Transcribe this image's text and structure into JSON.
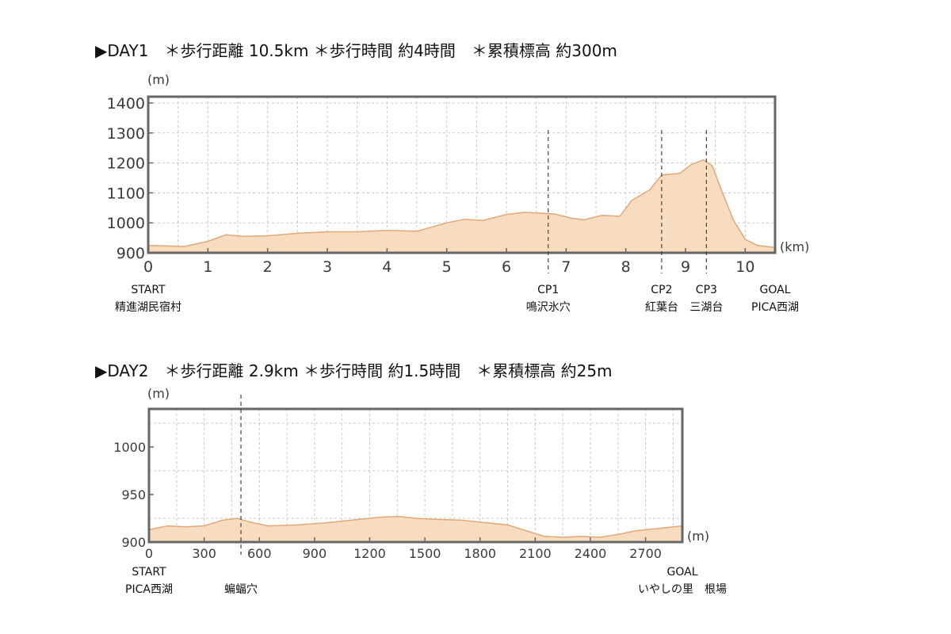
{
  "day1": {
    "title": "▶DAY1　＊歩行距離 10.5km ＊歩行時間 約4時間　＊累積標高 約300m",
    "ylabel": "(m)",
    "xlabel": "(km)",
    "annotations": [
      {
        "label": "START",
        "sub": "精進湖民宿村",
        "x": 0,
        "dashed": false
      },
      {
        "label": "CP1",
        "sub": "鳴沢氷穴",
        "x": 6.7,
        "dashed": true
      },
      {
        "label": "CP2",
        "sub": "紅葉台",
        "x": 8.6,
        "dashed": true
      },
      {
        "label": "CP3",
        "sub": "三湖台",
        "x": 9.35,
        "dashed": true
      },
      {
        "label": "GOAL",
        "sub": "PICA西湖",
        "x": 10.5,
        "dashed": false
      }
    ]
  },
  "day2": {
    "title": "▶DAY2　＊歩行距離 2.9km ＊歩行時間 約1.5時間　＊累積標高 約25m",
    "ylabel": "(m)",
    "xlabel": "(m)",
    "annotations": [
      {
        "label": "START",
        "sub": "PICA西湖",
        "x": 0,
        "dashed": false
      },
      {
        "label": "",
        "sub": "蝙蝠穴",
        "x": 500,
        "dashed": true
      },
      {
        "label": "GOAL",
        "sub": "いやしの里　根場",
        "x": 2900,
        "dashed": false
      }
    ]
  },
  "colors": {
    "fill": "#f8dcc0",
    "line": "#e2a778",
    "frame": "#666666",
    "grid": "#c8c8c8",
    "marker": "#444444"
  },
  "chart_data": [
    {
      "type": "area",
      "title": "▶DAY1　＊歩行距離 10.5km ＊歩行時間 約4時間　＊累積標高 約300m",
      "xlabel": "(km)",
      "ylabel": "(m)",
      "xlim": [
        0,
        10.5
      ],
      "ylim": [
        900,
        1400
      ],
      "xticks": [
        0,
        1,
        2,
        3,
        4,
        5,
        6,
        7,
        8,
        9,
        10
      ],
      "yticks": [
        900,
        1000,
        1100,
        1200,
        1300,
        1400
      ],
      "grid": true,
      "x": [
        0,
        0.3,
        0.6,
        1.0,
        1.3,
        1.6,
        2.0,
        2.5,
        3.0,
        3.5,
        4.0,
        4.5,
        5.0,
        5.3,
        5.6,
        6.0,
        6.3,
        6.6,
        6.8,
        7.1,
        7.3,
        7.6,
        7.9,
        8.1,
        8.4,
        8.6,
        8.9,
        9.1,
        9.3,
        9.45,
        9.6,
        9.8,
        10.0,
        10.2,
        10.5
      ],
      "y": [
        925,
        923,
        921,
        938,
        960,
        955,
        957,
        965,
        970,
        970,
        975,
        972,
        1000,
        1012,
        1008,
        1028,
        1035,
        1032,
        1030,
        1015,
        1010,
        1025,
        1022,
        1075,
        1110,
        1160,
        1165,
        1195,
        1210,
        1190,
        1110,
        1010,
        945,
        925,
        918
      ]
    },
    {
      "type": "area",
      "title": "▶DAY2　＊歩行距離 2.9km ＊歩行時間 約1.5時間　＊累積標高 約25m",
      "xlabel": "(m)",
      "ylabel": "(m)",
      "xlim": [
        0,
        2900
      ],
      "ylim": [
        900,
        1040
      ],
      "xticks": [
        0,
        300,
        600,
        900,
        1200,
        1500,
        1800,
        2100,
        2400,
        2700
      ],
      "yticks": [
        900,
        950,
        1000
      ],
      "grid": true,
      "x": [
        0,
        100,
        200,
        300,
        400,
        480,
        550,
        650,
        800,
        950,
        1100,
        1250,
        1350,
        1450,
        1550,
        1700,
        1850,
        1950,
        2050,
        2150,
        2250,
        2350,
        2450,
        2550,
        2650,
        2750,
        2900
      ],
      "y": [
        913,
        917,
        916,
        917,
        923,
        925,
        921,
        917,
        918,
        920,
        923,
        926,
        927,
        925,
        924,
        923,
        920,
        918,
        912,
        906,
        905,
        906,
        905,
        908,
        912,
        914,
        917
      ]
    }
  ]
}
